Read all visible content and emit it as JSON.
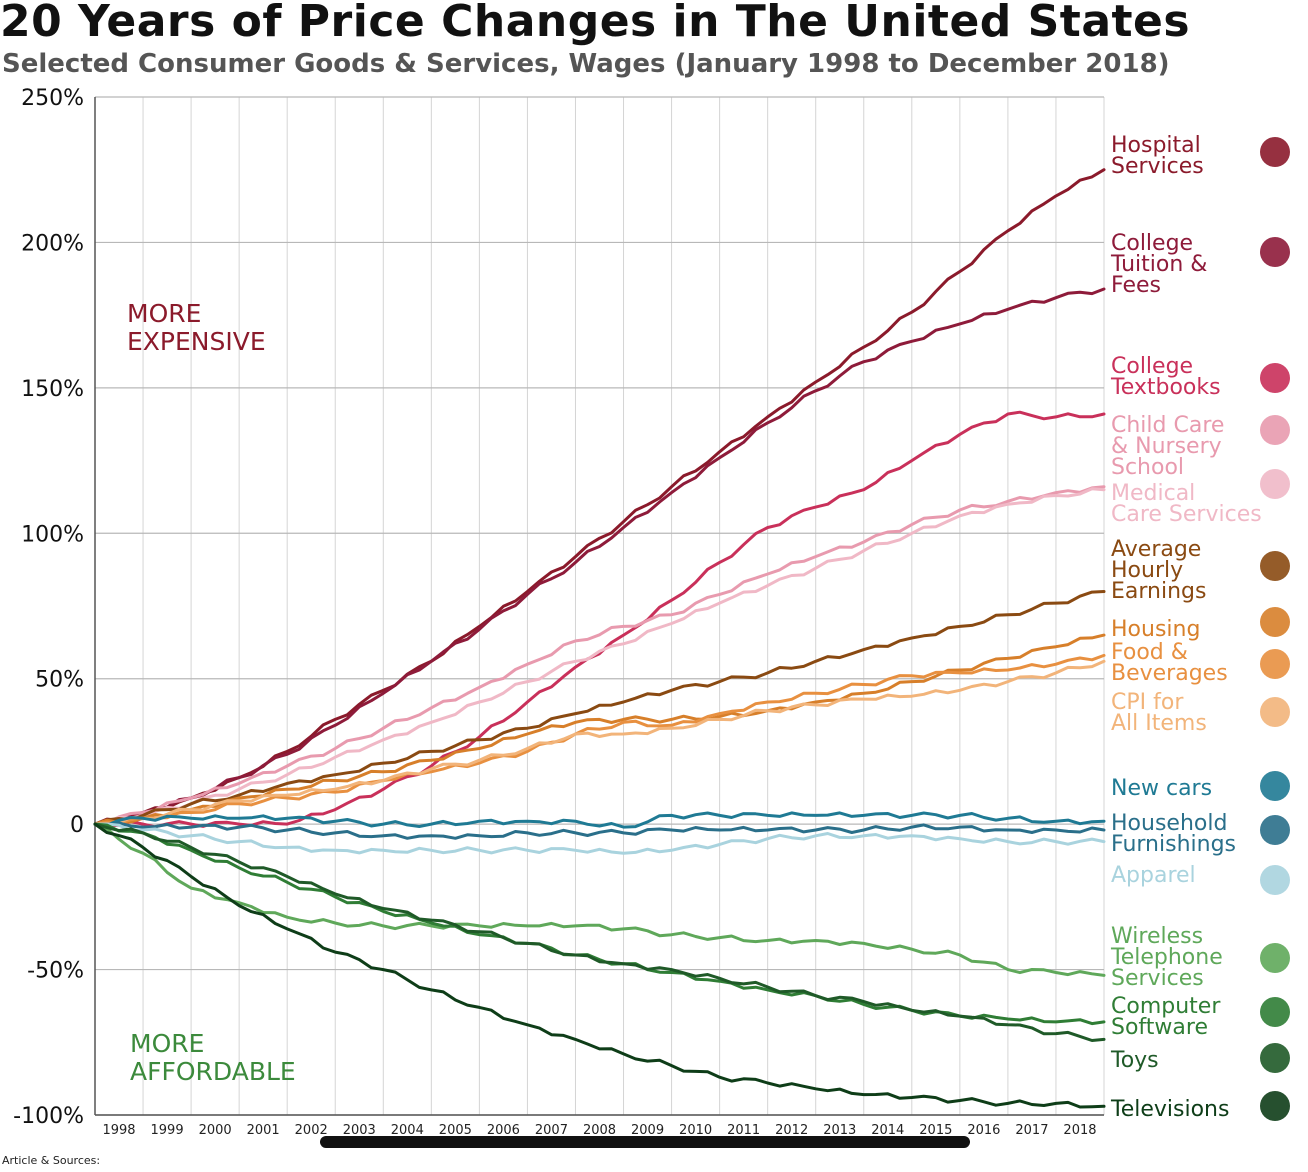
{
  "title": "20 Years of Price Changes in The United States",
  "subtitle": "Selected Consumer Goods & Services, Wages (January 1998 to December 2018)",
  "zone_labels": {
    "top": [
      "MORE",
      "EXPENSIVE"
    ],
    "bottom": [
      "MORE",
      "AFFORDABLE"
    ]
  },
  "sources_label": "Article & Sources:",
  "chart_data": {
    "type": "line",
    "title": "20 Years of Price Changes in The United States",
    "subtitle": "Selected Consumer Goods & Services, Wages (January 1998 to December 2018)",
    "x_ticks": [
      "1998",
      "1999",
      "2000",
      "2001",
      "2002",
      "2003",
      "2004",
      "2005",
      "2006",
      "2007",
      "2008",
      "2009",
      "2010",
      "2011",
      "2012",
      "2013",
      "2014",
      "2015",
      "2016",
      "2017",
      "2018"
    ],
    "y_ticks": [
      {
        "value": 250,
        "label": "250%"
      },
      {
        "value": 200,
        "label": "200%"
      },
      {
        "value": 150,
        "label": "150%"
      },
      {
        "value": 100,
        "label": "100%"
      },
      {
        "value": 50,
        "label": "50%"
      },
      {
        "value": 0,
        "label": "0"
      },
      {
        "value": -50,
        "label": "-50%"
      },
      {
        "value": -100,
        "label": "-100%"
      }
    ],
    "xlim": [
      1998,
      2019
    ],
    "ylim": [
      -100,
      250
    ],
    "grid": true,
    "legend_position": "right",
    "series": [
      {
        "name": "Hospital Services",
        "label_lines": [
          "Hospital",
          "Services"
        ],
        "color": "#8b1a2b",
        "icon": "hospital-icon",
        "x": [
          1998,
          1999,
          2000,
          2001,
          2002,
          2003,
          2004,
          2005,
          2006,
          2007,
          2008,
          2009,
          2010,
          2011,
          2012,
          2013,
          2014,
          2015,
          2016,
          2017,
          2018,
          2019
        ],
        "y": [
          0,
          4,
          9,
          16,
          25,
          36,
          46,
          56,
          68,
          80,
          92,
          104,
          116,
          128,
          140,
          152,
          164,
          176,
          190,
          204,
          216,
          225
        ]
      },
      {
        "name": "College Tuition & Fees",
        "label_lines": [
          "College",
          "Tuition &",
          "Fees"
        ],
        "color": "#8e1b3a",
        "icon": "graduation-cap-icon",
        "x": [
          1998,
          1999,
          2000,
          2001,
          2002,
          2003,
          2004,
          2005,
          2006,
          2007,
          2008,
          2009,
          2010,
          2011,
          2012,
          2013,
          2014,
          2015,
          2016,
          2017,
          2018,
          2019
        ],
        "y": [
          0,
          4,
          9,
          16,
          24,
          34,
          45,
          56,
          67,
          79,
          90,
          102,
          114,
          126,
          138,
          149,
          159,
          166,
          172,
          177,
          181,
          184
        ]
      },
      {
        "name": "College Textbooks",
        "label_lines": [
          "College",
          "Textbooks"
        ],
        "color": "#c9305a",
        "icon": "books-icon",
        "x": [
          1998,
          1999,
          2000,
          2001,
          2002,
          2003,
          2004,
          2005,
          2006,
          2007,
          2008,
          2009,
          2010,
          2011,
          2012,
          2013,
          2014,
          2015,
          2016,
          2017,
          2018,
          2019
        ],
        "y": [
          0,
          0,
          0,
          0,
          0,
          5,
          12,
          20,
          30,
          42,
          54,
          65,
          77,
          90,
          102,
          109,
          115,
          125,
          134,
          141,
          140,
          141
        ]
      },
      {
        "name": "Child Care & Nursery School",
        "label_lines": [
          "Child Care",
          "& Nursery",
          "School"
        ],
        "color": "#e89aae",
        "icon": "family-icon",
        "x": [
          1998,
          1999,
          2000,
          2001,
          2002,
          2003,
          2004,
          2005,
          2006,
          2007,
          2008,
          2009,
          2010,
          2011,
          2012,
          2013,
          2014,
          2015,
          2016,
          2017,
          2018,
          2019
        ],
        "y": [
          0,
          4,
          9,
          14,
          20,
          26,
          33,
          40,
          47,
          55,
          63,
          68,
          72,
          79,
          86,
          92,
          97,
          103,
          108,
          111,
          114,
          116
        ]
      },
      {
        "name": "Medical Care Services",
        "label_lines": [
          "Medical",
          "Care Services"
        ],
        "color": "#f0b8c6",
        "icon": "medical-hand-icon",
        "x": [
          1998,
          1999,
          2000,
          2001,
          2002,
          2003,
          2004,
          2005,
          2006,
          2007,
          2008,
          2009,
          2010,
          2011,
          2012,
          2013,
          2014,
          2015,
          2016,
          2017,
          2018,
          2019
        ],
        "y": [
          0,
          3,
          7,
          12,
          17,
          23,
          29,
          35,
          42,
          49,
          56,
          62,
          69,
          76,
          82,
          88,
          94,
          100,
          106,
          110,
          113,
          115
        ]
      },
      {
        "name": "Average Hourly Earnings",
        "label_lines": [
          "Average",
          "Hourly",
          "Earnings"
        ],
        "color": "#8a4a12",
        "icon": "clock-dollar-icon",
        "x": [
          1998,
          1999,
          2000,
          2001,
          2002,
          2003,
          2004,
          2005,
          2006,
          2007,
          2008,
          2009,
          2010,
          2011,
          2012,
          2013,
          2014,
          2015,
          2016,
          2017,
          2018,
          2019
        ],
        "y": [
          0,
          3,
          7,
          10,
          14,
          17,
          21,
          25,
          29,
          33,
          38,
          42,
          46,
          49,
          52,
          56,
          60,
          64,
          68,
          72,
          76,
          80
        ]
      },
      {
        "name": "Housing",
        "label_lines": [
          "Housing"
        ],
        "color": "#d77f2a",
        "icon": "house-icon",
        "x": [
          1998,
          1999,
          2000,
          2001,
          2002,
          2003,
          2004,
          2005,
          2006,
          2007,
          2008,
          2009,
          2010,
          2011,
          2012,
          2013,
          2014,
          2015,
          2016,
          2017,
          2018,
          2019
        ],
        "y": [
          0,
          2,
          5,
          9,
          12,
          15,
          18,
          22,
          26,
          31,
          35,
          36,
          36,
          37,
          39,
          42,
          45,
          49,
          53,
          57,
          61,
          65
        ]
      },
      {
        "name": "Food & Beverages",
        "label_lines": [
          "Food &",
          "Beverages"
        ],
        "color": "#e89040",
        "icon": "food-scale-icon",
        "x": [
          1998,
          1999,
          2000,
          2001,
          2002,
          2003,
          2004,
          2005,
          2006,
          2007,
          2008,
          2009,
          2010,
          2011,
          2012,
          2013,
          2014,
          2015,
          2016,
          2017,
          2018,
          2019
        ],
        "y": [
          0,
          2,
          4,
          7,
          9,
          11,
          15,
          18,
          21,
          25,
          31,
          35,
          34,
          38,
          42,
          45,
          48,
          51,
          52,
          53,
          55,
          58
        ]
      },
      {
        "name": "CPI for All Items",
        "label_lines": [
          "CPI for",
          "All Items"
        ],
        "color": "#f2b47a",
        "icon": "price-tag-icon",
        "x": [
          1998,
          1999,
          2000,
          2001,
          2002,
          2003,
          2004,
          2005,
          2006,
          2007,
          2008,
          2009,
          2010,
          2011,
          2012,
          2013,
          2014,
          2015,
          2016,
          2017,
          2018,
          2019
        ],
        "y": [
          0,
          2,
          5,
          8,
          10,
          12,
          15,
          19,
          22,
          26,
          31,
          31,
          33,
          36,
          39,
          41,
          43,
          44,
          46,
          49,
          52,
          56
        ]
      },
      {
        "name": "New cars",
        "label_lines": [
          "New cars"
        ],
        "color": "#1f7a94",
        "icon": "car-icon",
        "x": [
          1998,
          1999,
          2000,
          2001,
          2002,
          2003,
          2004,
          2005,
          2006,
          2007,
          2008,
          2009,
          2010,
          2011,
          2012,
          2013,
          2014,
          2015,
          2016,
          2017,
          2018,
          2019
        ],
        "y": [
          0,
          2,
          2,
          2,
          2,
          1,
          0,
          0,
          1,
          1,
          1,
          -1,
          3,
          3,
          3,
          3,
          3,
          3,
          3,
          2,
          1,
          1
        ]
      },
      {
        "name": "Household Furnishings",
        "label_lines": [
          "Household",
          "Furnishings"
        ],
        "color": "#2a6f8a",
        "icon": "household-icon",
        "x": [
          1998,
          1999,
          2000,
          2001,
          2002,
          2003,
          2004,
          2005,
          2006,
          2007,
          2008,
          2009,
          2010,
          2011,
          2012,
          2013,
          2014,
          2015,
          2016,
          2017,
          2018,
          2019
        ],
        "y": [
          0,
          -1,
          -1,
          -1,
          -2,
          -3,
          -4,
          -4,
          -4,
          -3,
          -3,
          -3,
          -2,
          -2,
          -2,
          -2,
          -2,
          -1,
          -1,
          -2,
          -2,
          -2
        ]
      },
      {
        "name": "Apparel",
        "label_lines": [
          "Apparel"
        ],
        "color": "#a9d3de",
        "icon": "apparel-icon",
        "x": [
          1998,
          1999,
          2000,
          2001,
          2002,
          2003,
          2004,
          2005,
          2006,
          2007,
          2008,
          2009,
          2010,
          2011,
          2012,
          2013,
          2014,
          2015,
          2016,
          2017,
          2018,
          2019
        ],
        "y": [
          0,
          -2,
          -4,
          -6,
          -8,
          -9,
          -9,
          -9,
          -9,
          -9,
          -9,
          -10,
          -9,
          -7,
          -5,
          -4,
          -4,
          -4,
          -5,
          -6,
          -6,
          -6
        ]
      },
      {
        "name": "Wireless Telephone Services",
        "label_lines": [
          "Wireless",
          "Telephone",
          "Services"
        ],
        "color": "#5fa85a",
        "icon": "phone-icon",
        "x": [
          1998,
          1999,
          2000,
          2001,
          2002,
          2003,
          2004,
          2005,
          2006,
          2007,
          2008,
          2009,
          2010,
          2011,
          2012,
          2013,
          2014,
          2015,
          2016,
          2017,
          2018,
          2019
        ],
        "y": [
          0,
          -10,
          -22,
          -27,
          -32,
          -34,
          -35,
          -35,
          -35,
          -35,
          -35,
          -36,
          -38,
          -39,
          -40,
          -40,
          -41,
          -43,
          -45,
          -50,
          -51,
          -52
        ]
      },
      {
        "name": "Computer Software",
        "label_lines": [
          "Computer",
          "Software"
        ],
        "color": "#2f7d35",
        "icon": "computer-software-icon",
        "x": [
          1998,
          1999,
          2000,
          2001,
          2002,
          2003,
          2004,
          2005,
          2006,
          2007,
          2008,
          2009,
          2010,
          2011,
          2012,
          2013,
          2014,
          2015,
          2016,
          2017,
          2018,
          2019
        ],
        "y": [
          0,
          -3,
          -9,
          -15,
          -20,
          -25,
          -30,
          -34,
          -38,
          -41,
          -45,
          -48,
          -51,
          -54,
          -57,
          -59,
          -62,
          -64,
          -66,
          -67,
          -68,
          -68
        ]
      },
      {
        "name": "Toys",
        "label_lines": [
          "Toys"
        ],
        "color": "#1f5a28",
        "icon": "toys-icon",
        "x": [
          1998,
          1999,
          2000,
          2001,
          2002,
          2003,
          2004,
          2005,
          2006,
          2007,
          2008,
          2009,
          2010,
          2011,
          2012,
          2013,
          2014,
          2015,
          2016,
          2017,
          2018,
          2019
        ],
        "y": [
          0,
          -3,
          -8,
          -13,
          -18,
          -24,
          -29,
          -33,
          -37,
          -41,
          -45,
          -48,
          -50,
          -53,
          -56,
          -59,
          -61,
          -64,
          -66,
          -69,
          -72,
          -74
        ]
      },
      {
        "name": "Televisions",
        "label_lines": [
          "Televisions"
        ],
        "color": "#0e3d18",
        "icon": "tv-icon",
        "x": [
          1998,
          1999,
          2000,
          2001,
          2002,
          2003,
          2004,
          2005,
          2006,
          2007,
          2008,
          2009,
          2010,
          2011,
          2012,
          2013,
          2014,
          2015,
          2016,
          2017,
          2018,
          2019
        ],
        "y": [
          0,
          -8,
          -18,
          -28,
          -36,
          -44,
          -50,
          -57,
          -63,
          -69,
          -74,
          -79,
          -83,
          -87,
          -89,
          -91,
          -93,
          -94,
          -95,
          -96,
          -96,
          -97
        ]
      }
    ]
  }
}
